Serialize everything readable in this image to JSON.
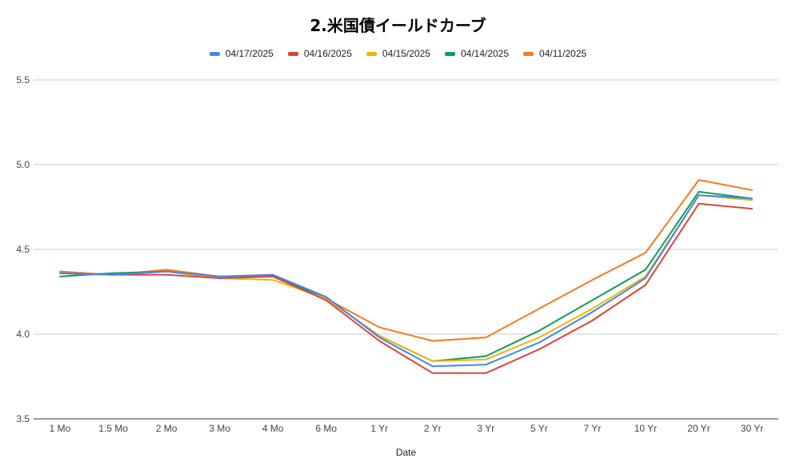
{
  "chart_data": {
    "type": "line",
    "title": "2.米国債イールドカーブ",
    "xlabel": "Date",
    "ylabel": "",
    "ylim": [
      3.5,
      5.5
    ],
    "yticks": [
      "3.5",
      "4.0",
      "4.5",
      "5.0",
      "5.5"
    ],
    "grid": true,
    "legend_position": "top",
    "categories": [
      "1 Mo",
      "1.5 Mo",
      "2 Mo",
      "3 Mo",
      "4 Mo",
      "6 Mo",
      "1 Yr",
      "2 Yr",
      "3 Yr",
      "5 Yr",
      "7 Yr",
      "10 Yr",
      "20 Yr",
      "30 Yr"
    ],
    "series": [
      {
        "name": "04/17/2025",
        "color": "#4285F4",
        "values": [
          4.36,
          4.35,
          4.37,
          4.34,
          4.35,
          4.22,
          3.98,
          3.81,
          3.82,
          3.95,
          4.13,
          4.33,
          4.82,
          4.8
        ]
      },
      {
        "name": "04/16/2025",
        "color": "#DB4437",
        "values": [
          4.36,
          4.35,
          4.35,
          4.33,
          4.34,
          4.2,
          3.96,
          3.77,
          3.77,
          3.91,
          4.08,
          4.29,
          4.77,
          4.74
        ]
      },
      {
        "name": "04/15/2025",
        "color": "#F4B400",
        "values": [
          4.36,
          4.35,
          4.37,
          4.33,
          4.32,
          4.21,
          3.99,
          3.84,
          3.85,
          3.98,
          4.15,
          4.34,
          4.82,
          4.79
        ]
      },
      {
        "name": "04/14/2025",
        "color": "#0F9D58",
        "values": [
          4.34,
          4.36,
          4.37,
          4.33,
          4.34,
          4.21,
          3.99,
          3.84,
          3.87,
          4.02,
          4.2,
          4.38,
          4.84,
          4.8
        ]
      },
      {
        "name": "04/11/2025",
        "color": "#F47B20",
        "values": [
          4.37,
          4.35,
          4.38,
          4.34,
          4.35,
          4.21,
          4.04,
          3.96,
          3.98,
          4.15,
          4.32,
          4.48,
          4.91,
          4.85
        ]
      }
    ]
  }
}
